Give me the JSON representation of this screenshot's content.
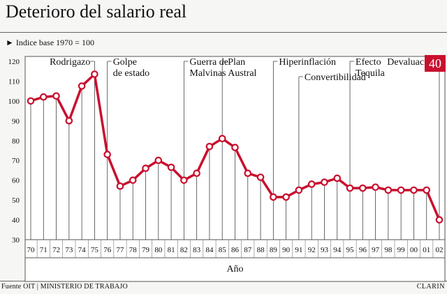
{
  "header": {
    "title": "Deterioro del salario real",
    "subtitle": "► Indice base 1970 = 100"
  },
  "footer": {
    "source": "Fuente OIT | MINISTERIO DE TRABAJO",
    "brand": "CLARIN"
  },
  "chart_data": {
    "type": "line",
    "title": "Deterioro del salario real",
    "ylabel": "Indice base 1970 = 100",
    "xlabel": "Año",
    "ylim": [
      30,
      120
    ],
    "yticks": [
      30,
      40,
      50,
      60,
      70,
      80,
      90,
      100,
      110,
      120
    ],
    "categories": [
      "70",
      "71",
      "72",
      "73",
      "74",
      "75",
      "76",
      "77",
      "78",
      "79",
      "80",
      "81",
      "82",
      "83",
      "84",
      "85",
      "86",
      "87",
      "88",
      "89",
      "90",
      "91",
      "92",
      "93",
      "94",
      "95",
      "96",
      "97",
      "98",
      "99",
      "00",
      "01",
      "02"
    ],
    "values": [
      100,
      102,
      102.5,
      90,
      107.5,
      113.5,
      73,
      57,
      60,
      66,
      70,
      66.5,
      60,
      63.5,
      77,
      81,
      76.5,
      63.5,
      61.5,
      51.5,
      51.5,
      55,
      58,
      59,
      61,
      56,
      56,
      56.5,
      55,
      55,
      55,
      55,
      40
    ],
    "color": "#c8102e",
    "highlight": {
      "label": "40",
      "index": 32
    },
    "annotations": [
      {
        "lines": [
          "Rodrigazo"
        ],
        "index": 5
      },
      {
        "lines": [
          "Golpe",
          "de estado"
        ],
        "index": 6
      },
      {
        "lines": [
          "Guerra de",
          "Malvinas"
        ],
        "index": 12
      },
      {
        "lines": [
          "Plan",
          "Austral"
        ],
        "index": 15
      },
      {
        "lines": [
          "Hiperinflación"
        ],
        "index": 19
      },
      {
        "lines": [
          "Convertibilidad"
        ],
        "index": 21
      },
      {
        "lines": [
          "Efecto",
          "Tequila"
        ],
        "index": 25
      },
      {
        "lines": [
          "Devaluación"
        ],
        "index": 32
      }
    ]
  }
}
